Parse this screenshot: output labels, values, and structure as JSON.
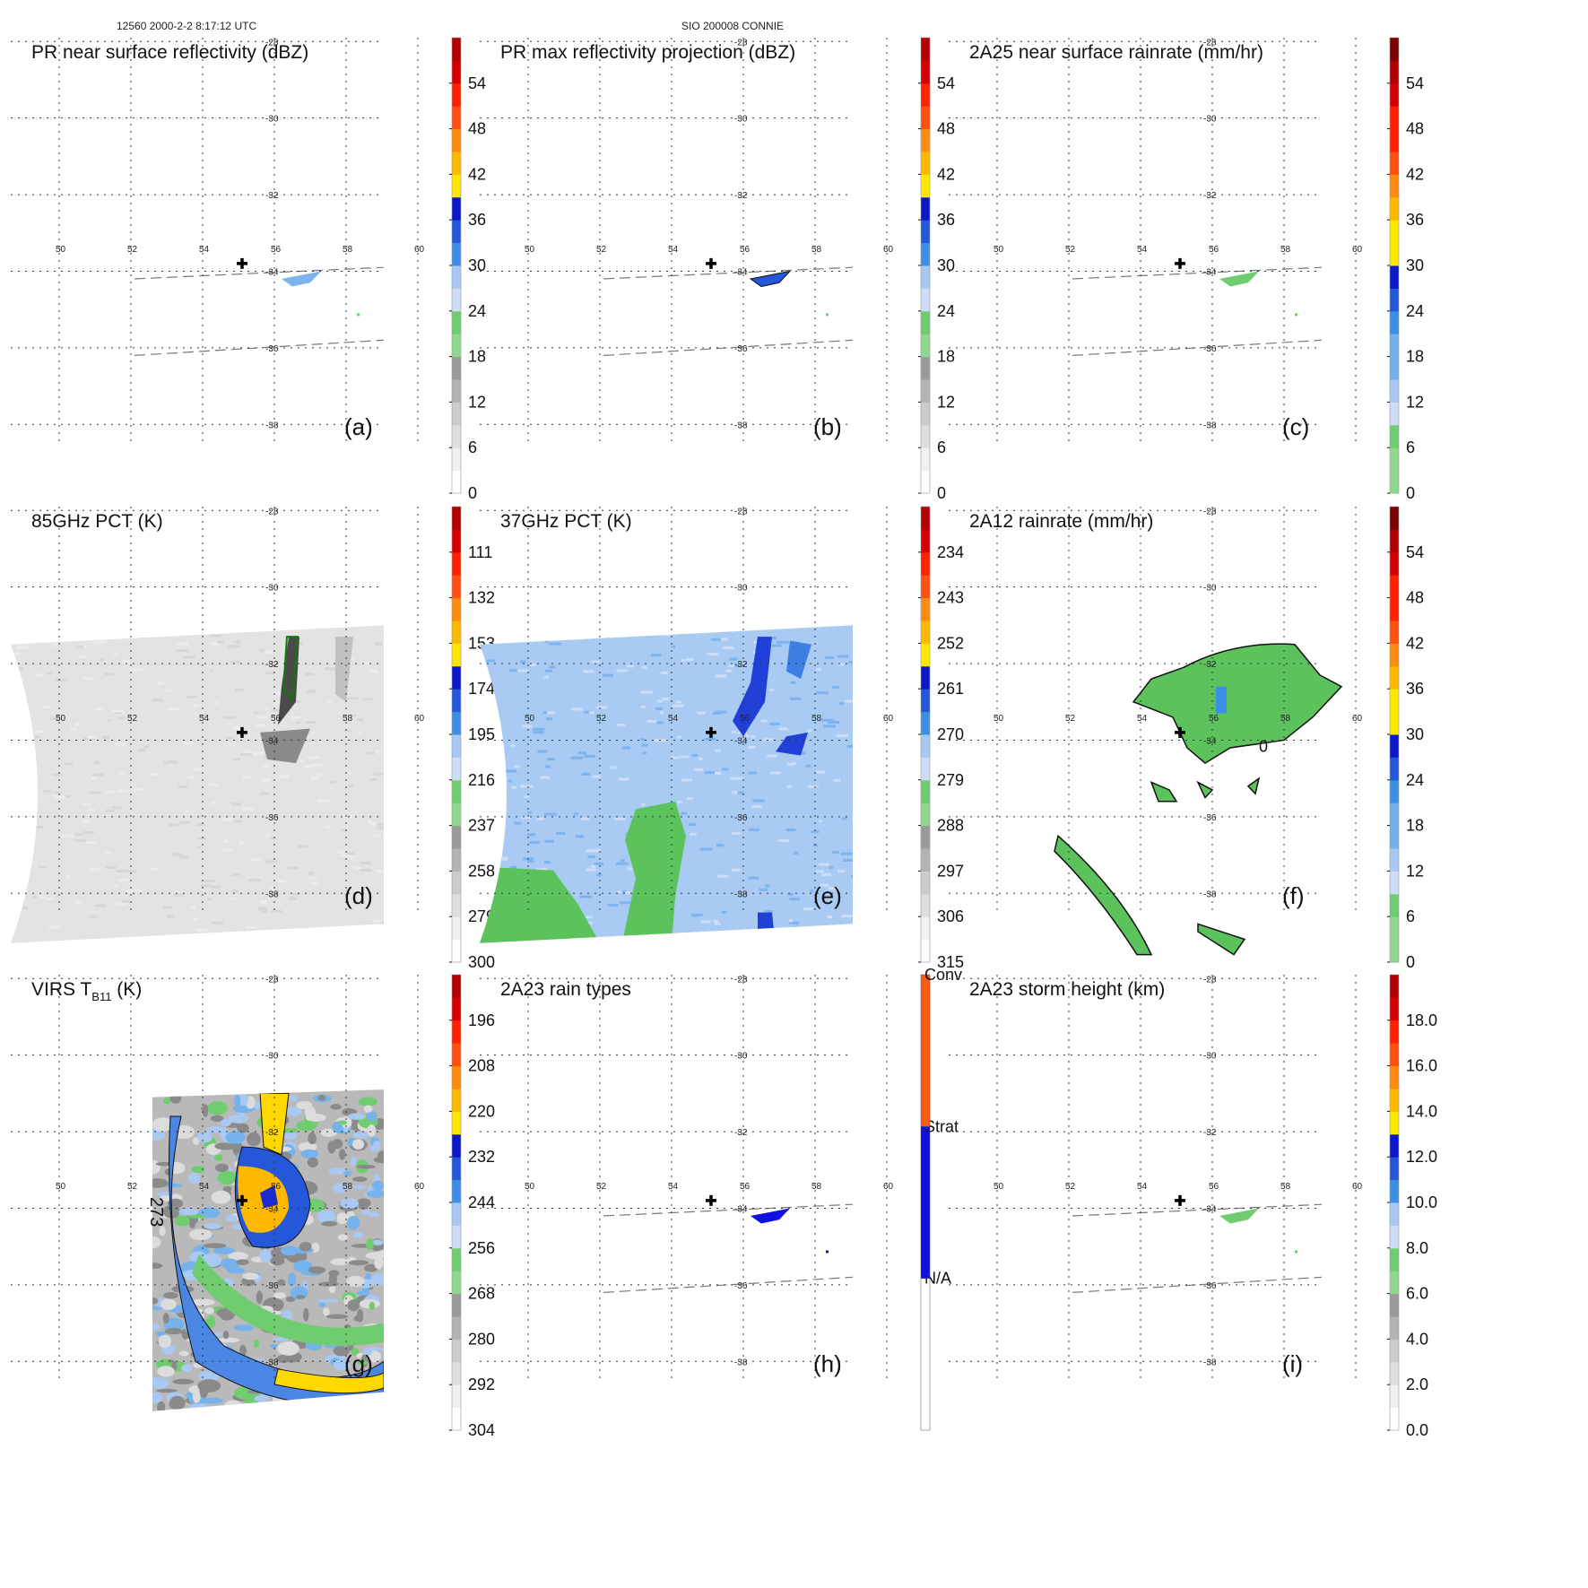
{
  "header": {
    "left": "12560 2000-2-2 8:17:12 UTC",
    "center": "SIO 200008 CONNIE"
  },
  "grid": {
    "lon_labels": [
      "50",
      "52",
      "54",
      "56",
      "58",
      "60"
    ],
    "lat_labels": [
      "-28",
      "-30",
      "-32",
      "-34",
      "-36",
      "-38"
    ]
  },
  "storm_center": {
    "lon": 55.1,
    "lat": -33.8
  },
  "chart_data": [
    {
      "type": "heatmap",
      "id": "a",
      "panel_label": "(a)",
      "title": "PR near surface reflectivity (dBZ)",
      "colorbar": {
        "ticks": [
          "0",
          "6",
          "12",
          "18",
          "24",
          "30",
          "36",
          "42",
          "48",
          "54"
        ],
        "ncolors": 20
      },
      "swath": "pr",
      "field": "pr_ns"
    },
    {
      "type": "heatmap",
      "id": "b",
      "panel_label": "(b)",
      "title": "PR max reflectivity projection (dBZ)",
      "colorbar": {
        "ticks": [
          "0",
          "6",
          "12",
          "18",
          "24",
          "30",
          "36",
          "42",
          "48",
          "54"
        ],
        "ncolors": 20
      },
      "swath": "pr",
      "field": "pr_max"
    },
    {
      "type": "heatmap",
      "id": "c",
      "panel_label": "(c)",
      "title": "2A25 near surface rainrate (mm/hr)",
      "colorbar": {
        "ticks": [
          "0",
          "6",
          "12",
          "18",
          "24",
          "30",
          "36",
          "42",
          "48",
          "54"
        ],
        "ncolors": 20,
        "scale": "rain"
      },
      "swath": "pr",
      "field": "rain_2a25"
    },
    {
      "type": "heatmap",
      "id": "d",
      "panel_label": "(d)",
      "title": "85GHz PCT (K)",
      "colorbar": {
        "ticks": [
          "300",
          "279",
          "258",
          "237",
          "216",
          "195",
          "174",
          "153",
          "132",
          "111"
        ],
        "ncolors": 20
      },
      "swath": "tmi",
      "field": "pct85"
    },
    {
      "type": "heatmap",
      "id": "e",
      "panel_label": "(e)",
      "title": "37GHz PCT (K)",
      "colorbar": {
        "ticks": [
          "315",
          "306",
          "297",
          "288",
          "279",
          "270",
          "261",
          "252",
          "243",
          "234"
        ],
        "ncolors": 20
      },
      "swath": "tmi",
      "field": "pct37"
    },
    {
      "type": "heatmap",
      "id": "f",
      "panel_label": "(f)",
      "title": "2A12 rainrate (mm/hr)",
      "colorbar": {
        "ticks": [
          "0",
          "6",
          "12",
          "18",
          "24",
          "30",
          "36",
          "42",
          "48",
          "54"
        ],
        "ncolors": 20,
        "scale": "rain"
      },
      "swath": "none",
      "field": "rain_2a12",
      "contour_label": "0"
    },
    {
      "type": "heatmap",
      "id": "g",
      "panel_label": "(g)",
      "title": "VIRS T",
      "title_sub": "B11",
      "title_units": " (K)",
      "colorbar": {
        "ticks": [
          "304",
          "292",
          "280",
          "268",
          "256",
          "244",
          "232",
          "220",
          "208",
          "196"
        ],
        "ncolors": 20
      },
      "swath": "virs",
      "field": "virs",
      "contour_label": "273"
    },
    {
      "type": "heatmap",
      "id": "h",
      "panel_label": "(h)",
      "title": "2A23 rain types",
      "colorbar": {
        "categories": [
          "N/A",
          "Strat",
          "Conv"
        ],
        "colors": [
          "#ffffff",
          "#1010e0",
          "#ff5a10"
        ]
      },
      "swath": "pr",
      "field": "raintype"
    },
    {
      "type": "heatmap",
      "id": "i",
      "panel_label": "(i)",
      "title": "2A23 storm height (km)",
      "colorbar": {
        "ticks": [
          "0.0",
          "2.0",
          "4.0",
          "6.0",
          "8.0",
          "10.0",
          "12.0",
          "14.0",
          "16.0",
          "18.0"
        ],
        "ncolors": 20
      },
      "swath": "pr",
      "field": "height"
    }
  ]
}
